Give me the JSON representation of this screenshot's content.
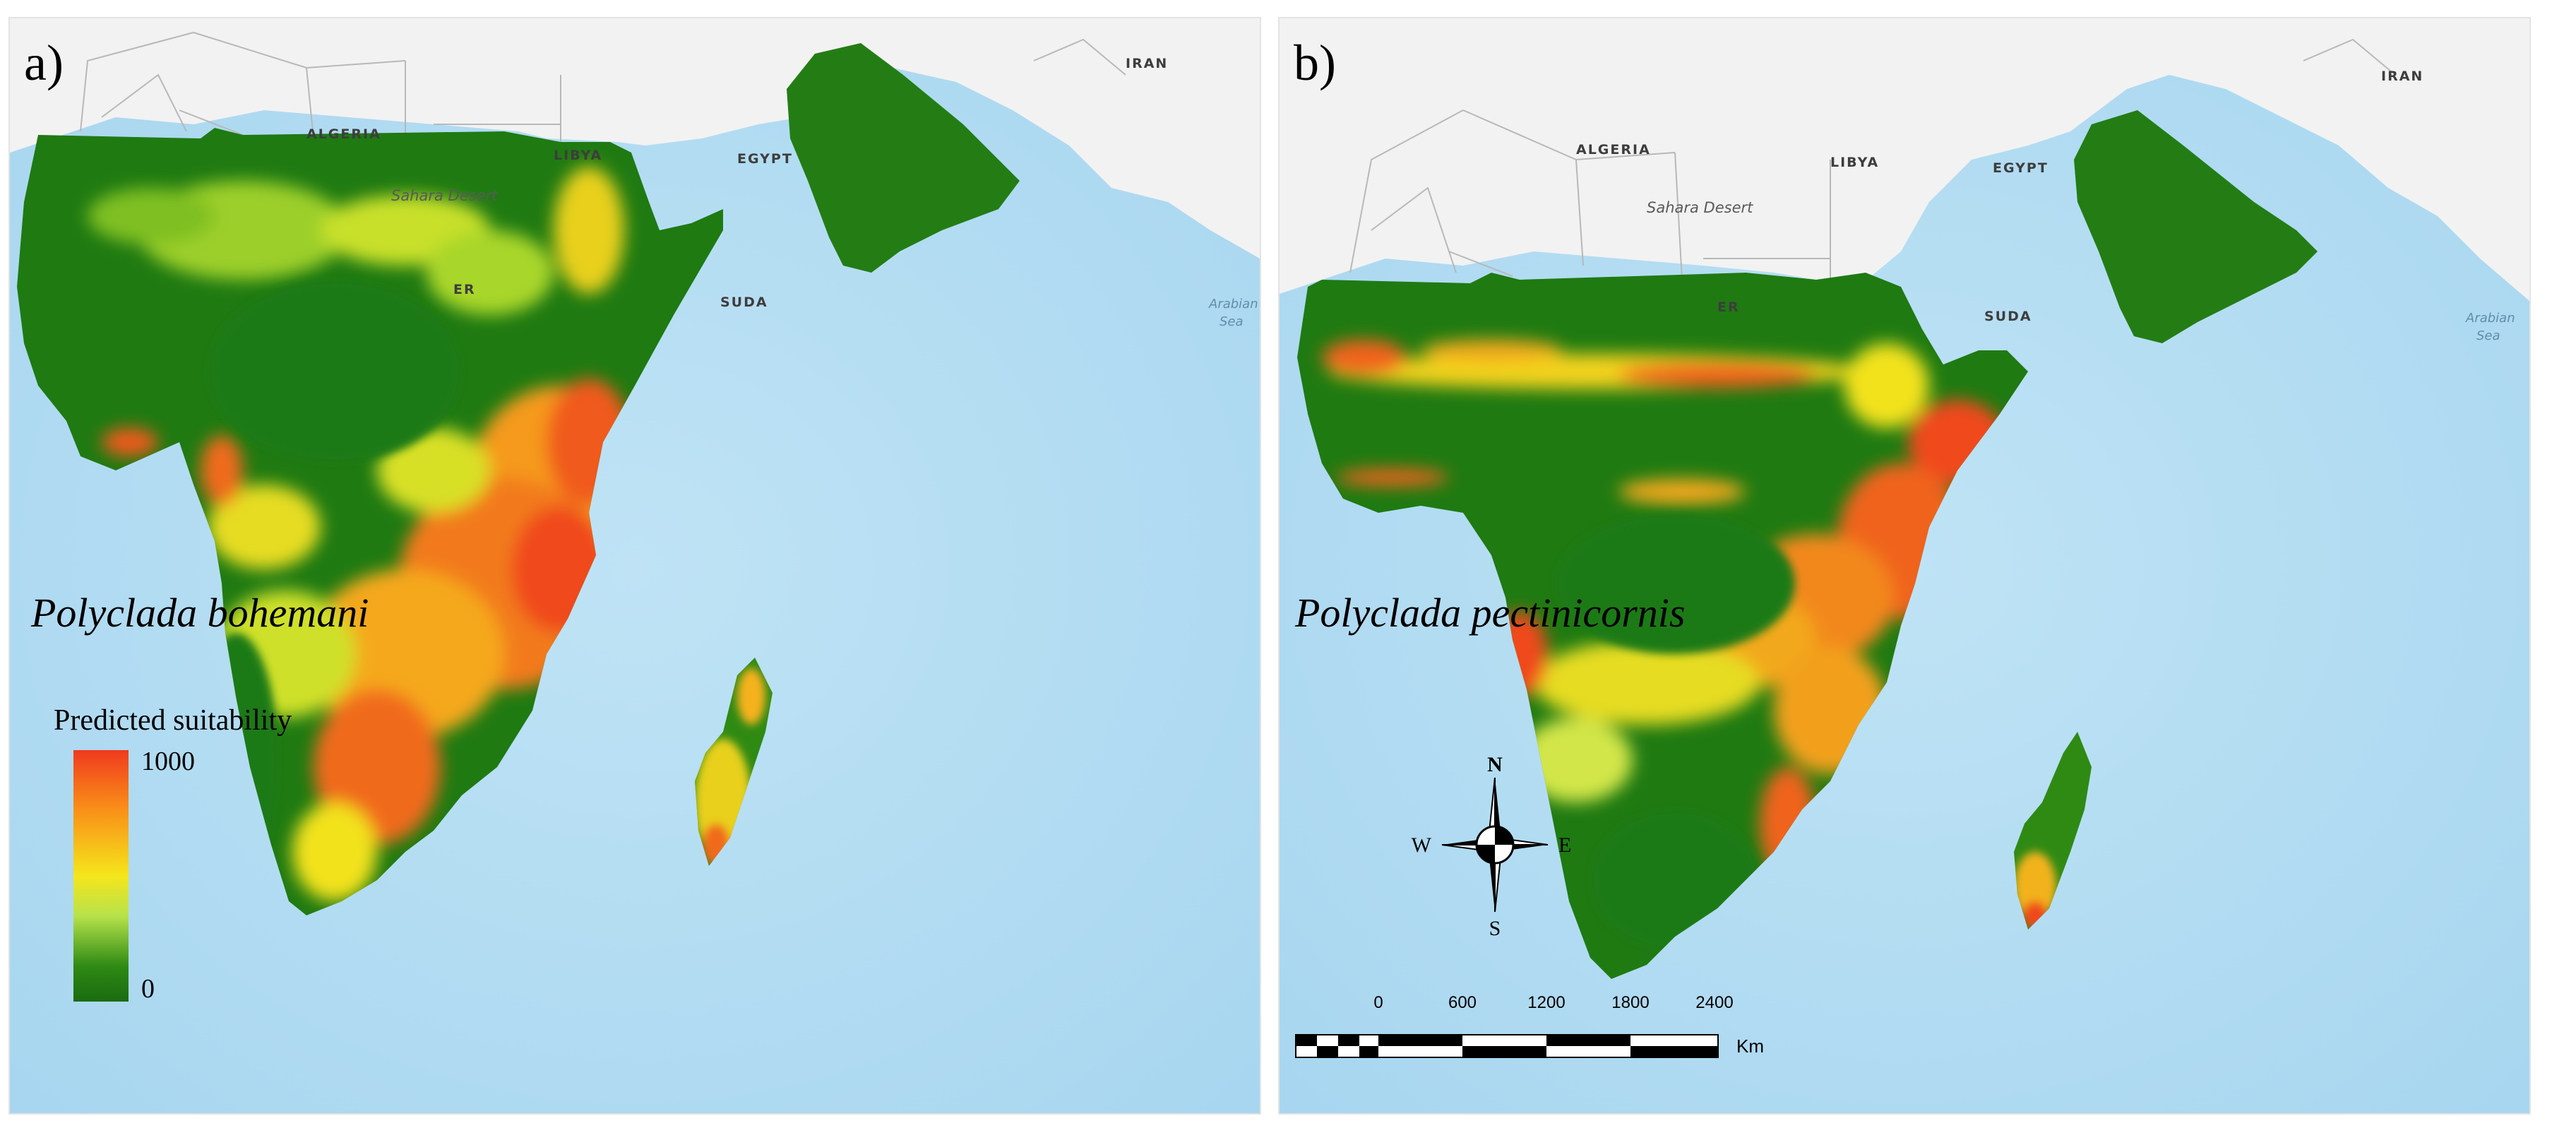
{
  "panels": [
    {
      "letter": "a)",
      "species": "Polyclada bohemani",
      "legend": {
        "title": "Predicted suitability",
        "max_label": "1000",
        "min_label": "0"
      }
    },
    {
      "letter": "b)",
      "species": "Polyclada pectinicornis",
      "compass": {
        "n": "N",
        "s": "S",
        "e": "E",
        "w": "W"
      },
      "scale": {
        "ticks": [
          "0",
          "600",
          "1200",
          "1800",
          "2400"
        ],
        "unit": "Km"
      }
    }
  ],
  "basemap": {
    "countries": [
      "ALGERIA",
      "LIBYA",
      "EGYPT",
      "IRAN",
      "SUDAN"
    ],
    "sudan_partial": "SUDA",
    "niger_partial": "ER",
    "desert": "Sahara Desert",
    "sea": [
      "Arabian",
      "Sea"
    ]
  },
  "colors": {
    "ocean": "#aad8f0",
    "land": "#f2f2f2",
    "low": "#1f7a12",
    "mid": "#e8e81e",
    "high": "#f04a1c"
  }
}
